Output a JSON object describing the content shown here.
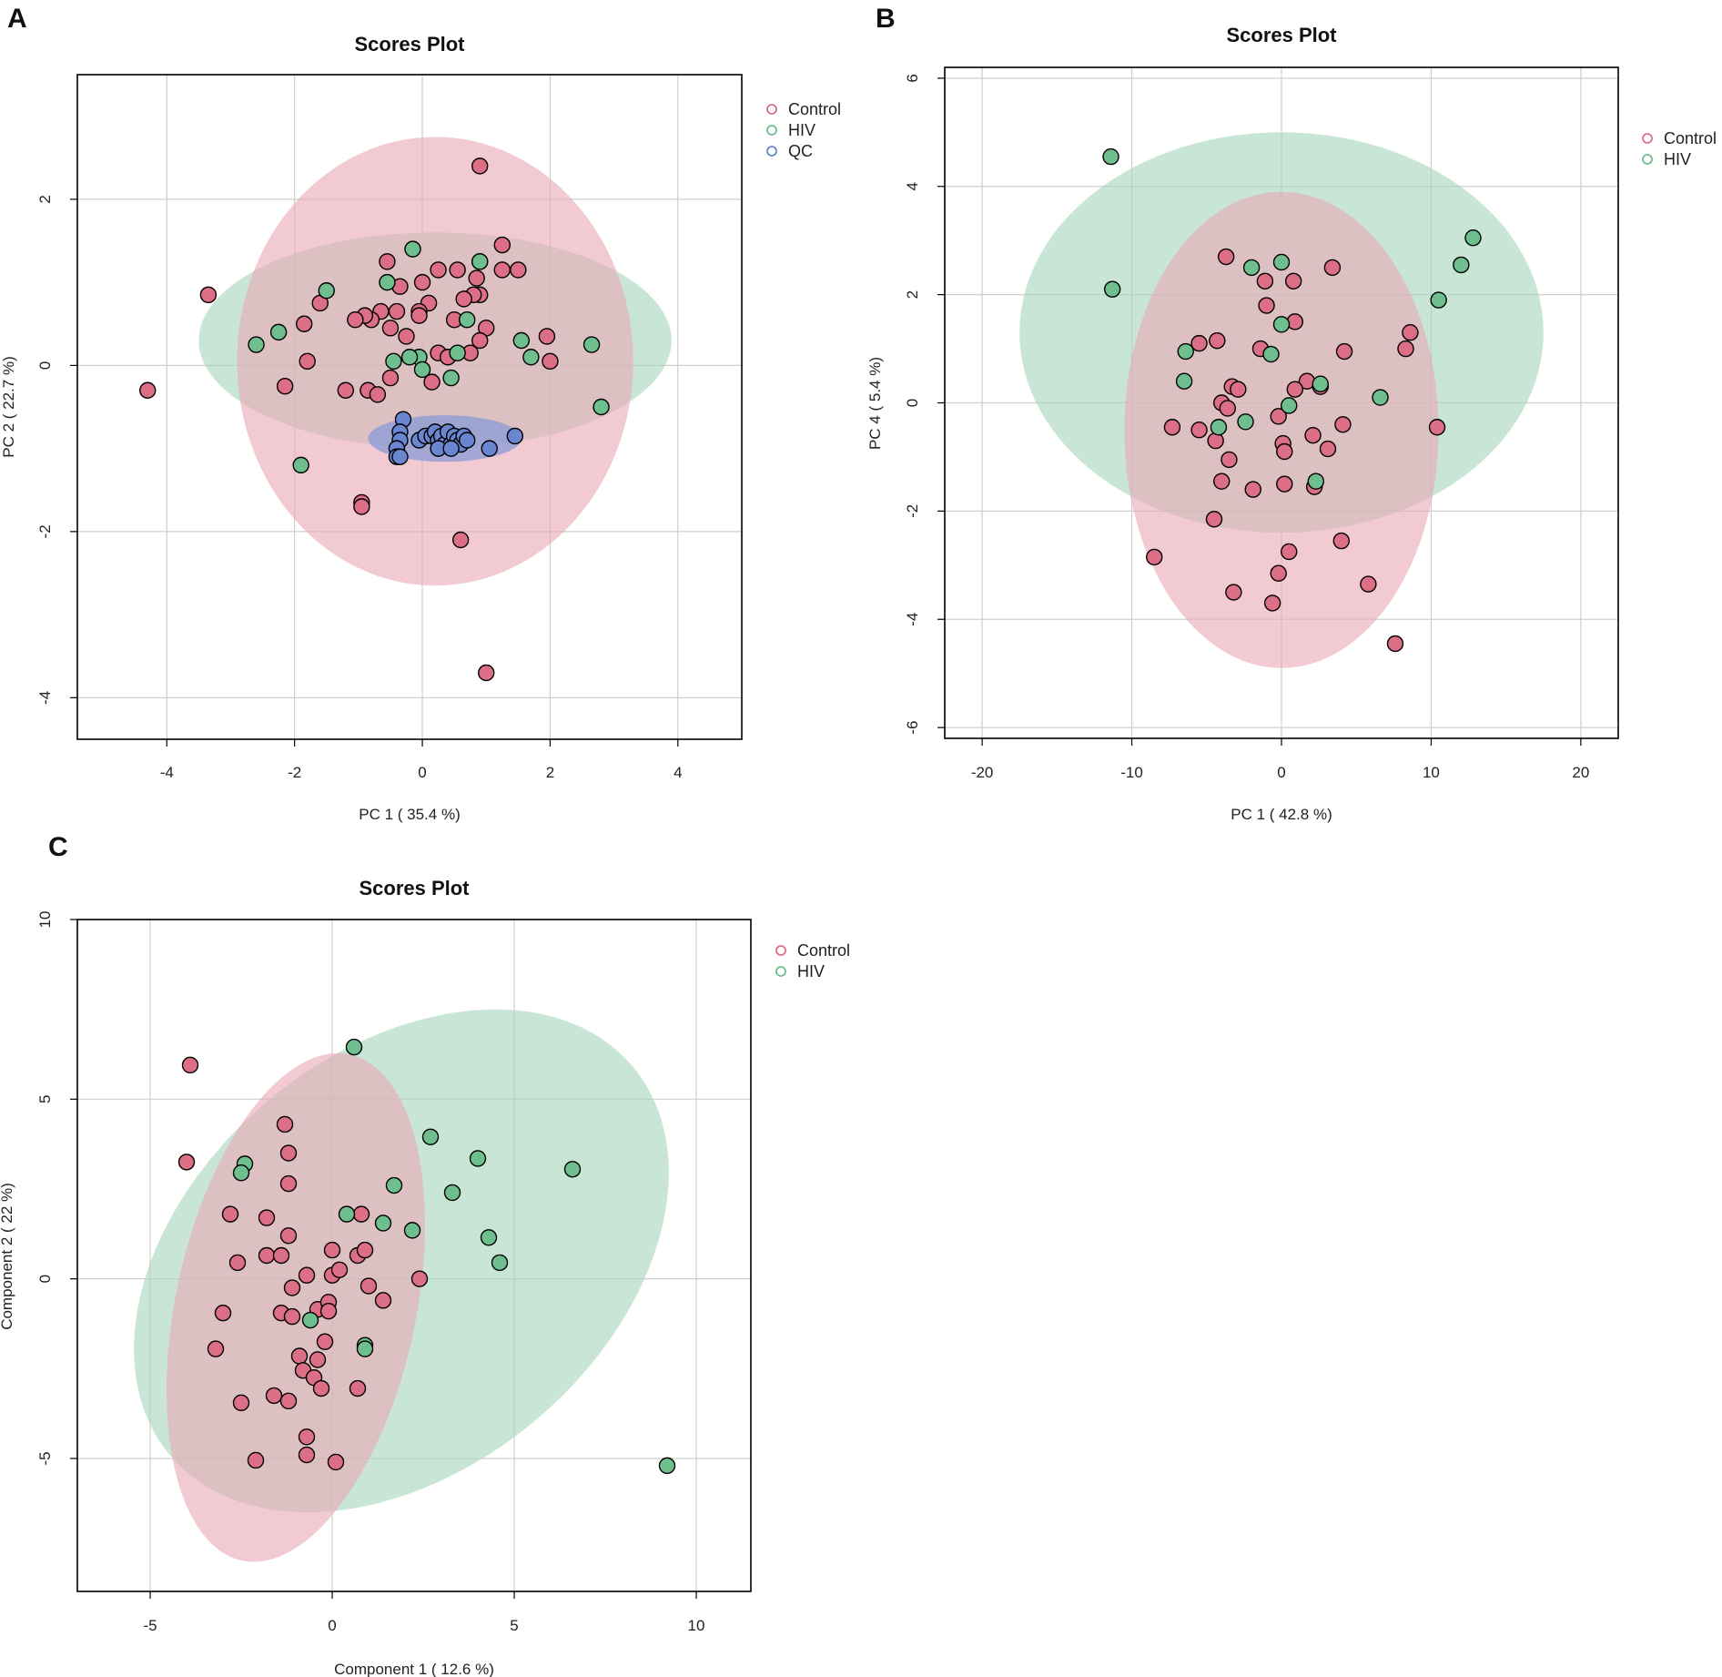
{
  "colors": {
    "Control": "#DC6E86",
    "HIV": "#6FBE8E",
    "QC": "#6A86D1",
    "ellipse_Control": "#E8A9B6",
    "ellipse_HIV": "#A8D5BC",
    "ellipse_QC": "#8A9BD6"
  },
  "chart_data": [
    {
      "id": "A",
      "panel_label": "A",
      "type": "scatter",
      "title": "Scores Plot",
      "xlabel": "PC 1 ( 35.4 %)",
      "ylabel": "PC 2 ( 22.7 %)",
      "xlim": [
        -5.4,
        5.0
      ],
      "ylim": [
        -4.5,
        3.5
      ],
      "xticks": [
        -4,
        -2,
        0,
        2,
        4
      ],
      "yticks": [
        -4,
        -2,
        0,
        2
      ],
      "xtick_labels": [
        "-4",
        "-2",
        "0",
        "2",
        "4"
      ],
      "ytick_labels": [
        "-4",
        "-2",
        "0",
        "2"
      ],
      "legend": [
        "Control",
        "HIV",
        "QC"
      ],
      "ellipses": [
        {
          "group": "HIV",
          "cx": 0.2,
          "cy": 0.3,
          "rx": 3.7,
          "ry": 1.3,
          "rot": 0
        },
        {
          "group": "Control",
          "cx": 0.2,
          "cy": 0.05,
          "rx": 3.1,
          "ry": 2.7,
          "rot": 0
        },
        {
          "group": "QC",
          "cx": 0.35,
          "cy": -0.88,
          "rx": 1.2,
          "ry": 0.28,
          "rot": 0
        }
      ],
      "series": [
        {
          "name": "Control",
          "points": [
            [
              0.9,
              2.4
            ],
            [
              1.25,
              1.45
            ],
            [
              1.5,
              1.15
            ],
            [
              1.25,
              1.15
            ],
            [
              0.9,
              1.25
            ],
            [
              0.85,
              1.05
            ],
            [
              0.55,
              1.15
            ],
            [
              0.25,
              1.15
            ],
            [
              -0.55,
              1.25
            ],
            [
              -0.35,
              0.95
            ],
            [
              0.0,
              1.0
            ],
            [
              0.9,
              0.85
            ],
            [
              0.8,
              0.85
            ],
            [
              0.65,
              0.8
            ],
            [
              0.1,
              0.75
            ],
            [
              -0.05,
              0.65
            ],
            [
              -0.05,
              0.6
            ],
            [
              -0.65,
              0.65
            ],
            [
              -0.4,
              0.65
            ],
            [
              -0.8,
              0.55
            ],
            [
              -0.9,
              0.6
            ],
            [
              -1.05,
              0.55
            ],
            [
              -3.35,
              0.85
            ],
            [
              -1.6,
              0.75
            ],
            [
              -1.85,
              0.5
            ],
            [
              -0.5,
              0.45
            ],
            [
              -0.25,
              0.35
            ],
            [
              0.5,
              0.55
            ],
            [
              1.0,
              0.45
            ],
            [
              0.9,
              0.3
            ],
            [
              1.95,
              0.35
            ],
            [
              2.0,
              0.05
            ],
            [
              0.25,
              0.15
            ],
            [
              0.4,
              0.1
            ],
            [
              0.75,
              0.15
            ],
            [
              -1.8,
              0.05
            ],
            [
              -2.15,
              -0.25
            ],
            [
              -1.2,
              -0.3
            ],
            [
              -0.85,
              -0.3
            ],
            [
              -0.7,
              -0.35
            ],
            [
              -0.5,
              -0.15
            ],
            [
              0.15,
              -0.2
            ],
            [
              -4.3,
              -0.3
            ],
            [
              -0.95,
              -1.65
            ],
            [
              -0.95,
              -1.7
            ],
            [
              0.6,
              -2.1
            ],
            [
              1.0,
              -3.7
            ]
          ]
        },
        {
          "name": "HIV",
          "points": [
            [
              -0.15,
              1.4
            ],
            [
              0.9,
              1.25
            ],
            [
              -0.55,
              1.0
            ],
            [
              -1.5,
              0.9
            ],
            [
              -2.25,
              0.4
            ],
            [
              -2.6,
              0.25
            ],
            [
              0.7,
              0.55
            ],
            [
              1.55,
              0.3
            ],
            [
              1.7,
              0.1
            ],
            [
              2.65,
              0.25
            ],
            [
              0.55,
              0.15
            ],
            [
              -0.05,
              0.1
            ],
            [
              -0.2,
              0.1
            ],
            [
              -0.45,
              0.05
            ],
            [
              0.0,
              -0.05
            ],
            [
              0.45,
              -0.15
            ],
            [
              2.8,
              -0.5
            ],
            [
              -1.9,
              -1.2
            ]
          ]
        },
        {
          "name": "QC",
          "points": [
            [
              -0.3,
              -0.65
            ],
            [
              -0.35,
              -0.8
            ],
            [
              -0.35,
              -0.9
            ],
            [
              -0.4,
              -1.0
            ],
            [
              -0.4,
              -1.1
            ],
            [
              -0.35,
              -1.1
            ],
            [
              -0.05,
              -0.9
            ],
            [
              0.05,
              -0.85
            ],
            [
              0.15,
              -0.85
            ],
            [
              0.2,
              -0.8
            ],
            [
              0.25,
              -0.9
            ],
            [
              0.3,
              -0.85
            ],
            [
              0.35,
              -0.95
            ],
            [
              0.4,
              -0.8
            ],
            [
              0.45,
              -0.95
            ],
            [
              0.5,
              -0.85
            ],
            [
              0.55,
              -0.9
            ],
            [
              0.6,
              -0.95
            ],
            [
              0.65,
              -0.85
            ],
            [
              0.7,
              -0.9
            ],
            [
              1.05,
              -1.0
            ],
            [
              1.45,
              -0.85
            ],
            [
              0.25,
              -1.0
            ],
            [
              0.45,
              -1.0
            ]
          ]
        }
      ]
    },
    {
      "id": "B",
      "panel_label": "B",
      "type": "scatter",
      "title": "Scores Plot",
      "xlabel": "PC 1 ( 42.8 %)",
      "ylabel": "PC 4 ( 5.4 %)",
      "xlim": [
        -22.5,
        22.5
      ],
      "ylim": [
        -6.2,
        6.2
      ],
      "xticks": [
        -20,
        -10,
        0,
        10,
        20
      ],
      "yticks": [
        -6,
        -4,
        -2,
        0,
        2,
        4,
        6
      ],
      "xtick_labels": [
        "-20",
        "-10",
        "0",
        "10",
        "20"
      ],
      "ytick_labels": [
        "-6",
        "-4",
        "-2",
        "0",
        "2",
        "4",
        "6"
      ],
      "legend": [
        "Control",
        "HIV"
      ],
      "ellipses": [
        {
          "group": "HIV",
          "cx": 0.0,
          "cy": 1.3,
          "rx": 17.5,
          "ry": 3.7,
          "rot": 0
        },
        {
          "group": "Control",
          "cx": 0.0,
          "cy": -0.5,
          "rx": 10.5,
          "ry": 4.4,
          "rot": 0
        }
      ],
      "series": [
        {
          "name": "Control",
          "points": [
            [
              -3.7,
              2.7
            ],
            [
              3.4,
              2.5
            ],
            [
              -1.1,
              2.25
            ],
            [
              0.8,
              2.25
            ],
            [
              -1.0,
              1.8
            ],
            [
              0.9,
              1.5
            ],
            [
              -4.3,
              1.15
            ],
            [
              -5.5,
              1.1
            ],
            [
              -1.4,
              1.0
            ],
            [
              4.2,
              0.95
            ],
            [
              8.6,
              1.3
            ],
            [
              8.3,
              1.0
            ],
            [
              1.7,
              0.4
            ],
            [
              2.6,
              0.3
            ],
            [
              0.9,
              0.25
            ],
            [
              -3.3,
              0.3
            ],
            [
              -2.9,
              0.25
            ],
            [
              -4.0,
              0.0
            ],
            [
              -3.6,
              -0.1
            ],
            [
              -0.2,
              -0.25
            ],
            [
              4.1,
              -0.4
            ],
            [
              10.4,
              -0.45
            ],
            [
              -7.3,
              -0.45
            ],
            [
              -5.5,
              -0.5
            ],
            [
              -4.4,
              -0.7
            ],
            [
              2.1,
              -0.6
            ],
            [
              0.1,
              -0.75
            ],
            [
              0.2,
              -0.9
            ],
            [
              3.1,
              -0.85
            ],
            [
              -3.5,
              -1.05
            ],
            [
              -4.0,
              -1.45
            ],
            [
              0.2,
              -1.5
            ],
            [
              2.2,
              -1.55
            ],
            [
              -1.9,
              -1.6
            ],
            [
              -4.5,
              -2.15
            ],
            [
              4.0,
              -2.55
            ],
            [
              0.5,
              -2.75
            ],
            [
              -8.5,
              -2.85
            ],
            [
              -0.2,
              -3.15
            ],
            [
              -3.2,
              -3.5
            ],
            [
              5.8,
              -3.35
            ],
            [
              -0.6,
              -3.7
            ],
            [
              7.6,
              -4.45
            ]
          ]
        },
        {
          "name": "HIV",
          "points": [
            [
              -11.4,
              4.55
            ],
            [
              -11.3,
              2.1
            ],
            [
              12.8,
              3.05
            ],
            [
              12.0,
              2.55
            ],
            [
              10.5,
              1.9
            ],
            [
              -2.0,
              2.5
            ],
            [
              0.0,
              2.6
            ],
            [
              0.0,
              1.45
            ],
            [
              -0.7,
              0.9
            ],
            [
              -6.4,
              0.95
            ],
            [
              -6.5,
              0.4
            ],
            [
              6.6,
              0.1
            ],
            [
              2.6,
              0.35
            ],
            [
              0.5,
              -0.05
            ],
            [
              -2.4,
              -0.35
            ],
            [
              -4.2,
              -0.45
            ],
            [
              2.3,
              -1.45
            ]
          ]
        }
      ]
    },
    {
      "id": "C",
      "panel_label": "C",
      "type": "scatter",
      "title": "Scores Plot",
      "xlabel": "Component 1 ( 12.6 %)",
      "ylabel": "Component 2 ( 22 %)",
      "xlim": [
        -7.0,
        11.5
      ],
      "ylim": [
        -8.7,
        10.0
      ],
      "xticks": [
        -5,
        0,
        5,
        10
      ],
      "yticks": [
        -5,
        0,
        5,
        10
      ],
      "xtick_labels": [
        "-5",
        "0",
        "5",
        "10"
      ],
      "ytick_labels": [
        "-5",
        "0",
        "5",
        "10"
      ],
      "legend": [
        "Control",
        "HIV"
      ],
      "ellipses": [
        {
          "group": "HIV",
          "cx": 1.9,
          "cy": 0.5,
          "rx": 8.3,
          "ry": 5.8,
          "rot": -40
        },
        {
          "group": "Control",
          "cx": -1.0,
          "cy": -0.8,
          "rx": 3.3,
          "ry": 7.2,
          "rot": 12
        },
        {
          "group": "Control_overlap_marker",
          "cx": 0,
          "cy": 0,
          "rx": 0,
          "ry": 0,
          "rot": 0
        }
      ],
      "series": [
        {
          "name": "Control",
          "points": [
            [
              -3.9,
              5.95
            ],
            [
              -4.0,
              3.25
            ],
            [
              -1.3,
              4.3
            ],
            [
              -1.2,
              3.5
            ],
            [
              -1.2,
              2.65
            ],
            [
              -2.8,
              1.8
            ],
            [
              -1.8,
              1.7
            ],
            [
              -1.2,
              1.2
            ],
            [
              0.8,
              1.8
            ],
            [
              -1.8,
              0.65
            ],
            [
              -1.4,
              0.65
            ],
            [
              0.0,
              0.8
            ],
            [
              0.7,
              0.65
            ],
            [
              0.9,
              0.8
            ],
            [
              -2.6,
              0.45
            ],
            [
              -0.7,
              0.1
            ],
            [
              0.0,
              0.1
            ],
            [
              0.2,
              0.25
            ],
            [
              -1.1,
              -0.25
            ],
            [
              1.0,
              -0.2
            ],
            [
              2.4,
              0.0
            ],
            [
              -3.0,
              -0.95
            ],
            [
              -1.4,
              -0.95
            ],
            [
              -1.1,
              -1.05
            ],
            [
              -0.4,
              -0.85
            ],
            [
              -0.1,
              -0.65
            ],
            [
              -0.1,
              -0.9
            ],
            [
              1.4,
              -0.6
            ],
            [
              -3.2,
              -1.95
            ],
            [
              -0.2,
              -1.75
            ],
            [
              -0.9,
              -2.15
            ],
            [
              -0.4,
              -2.25
            ],
            [
              -0.8,
              -2.55
            ],
            [
              -0.5,
              -2.75
            ],
            [
              -0.3,
              -3.05
            ],
            [
              0.7,
              -3.05
            ],
            [
              -2.5,
              -3.45
            ],
            [
              -1.6,
              -3.25
            ],
            [
              -1.2,
              -3.4
            ],
            [
              -0.7,
              -4.4
            ],
            [
              -2.1,
              -5.05
            ],
            [
              -0.7,
              -4.9
            ],
            [
              0.1,
              -5.1
            ]
          ]
        },
        {
          "name": "HIV",
          "points": [
            [
              0.6,
              6.45
            ],
            [
              -2.4,
              3.2
            ],
            [
              -2.5,
              2.95
            ],
            [
              2.7,
              3.95
            ],
            [
              4.0,
              3.35
            ],
            [
              6.6,
              3.05
            ],
            [
              1.7,
              2.6
            ],
            [
              3.3,
              2.4
            ],
            [
              0.4,
              1.8
            ],
            [
              1.4,
              1.55
            ],
            [
              2.2,
              1.35
            ],
            [
              4.3,
              1.15
            ],
            [
              4.6,
              0.45
            ],
            [
              -0.6,
              -1.15
            ],
            [
              0.9,
              -1.85
            ],
            [
              0.9,
              -1.95
            ],
            [
              9.2,
              -5.2
            ]
          ]
        }
      ]
    }
  ]
}
